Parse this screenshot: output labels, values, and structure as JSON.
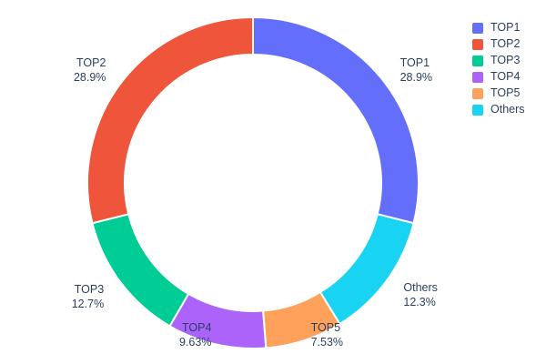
{
  "chart_data": {
    "type": "pie",
    "subtype": "donut",
    "hole": 0.775,
    "title": "",
    "labels": [
      "TOP1",
      "TOP2",
      "TOP3",
      "TOP4",
      "TOP5",
      "Others"
    ],
    "values": [
      28.9,
      28.9,
      12.7,
      9.63,
      7.53,
      12.3
    ],
    "slices": [
      {
        "label": "TOP1",
        "value": 28.9,
        "pct": "28.9%",
        "color": "#636EFA"
      },
      {
        "label": "Others",
        "value": 12.3,
        "pct": "12.3%",
        "color": "#19D3F3"
      },
      {
        "label": "TOP5",
        "value": 7.53,
        "pct": "7.53%",
        "color": "#FFA15A"
      },
      {
        "label": "TOP4",
        "value": 9.63,
        "pct": "9.63%",
        "color": "#AB63FA"
      },
      {
        "label": "TOP3",
        "value": 12.7,
        "pct": "12.7%",
        "color": "#00CC96"
      },
      {
        "label": "TOP2",
        "value": 28.9,
        "pct": "28.9%",
        "color": "#EF553B"
      }
    ],
    "legend_order": [
      "TOP1",
      "TOP2",
      "TOP3",
      "TOP4",
      "TOP5",
      "Others"
    ],
    "legend_position": "top-right",
    "start_angle_deg": 0,
    "direction": "clockwise",
    "grid": false,
    "text_color": "#2a3f5f",
    "background": "#ffffff"
  }
}
